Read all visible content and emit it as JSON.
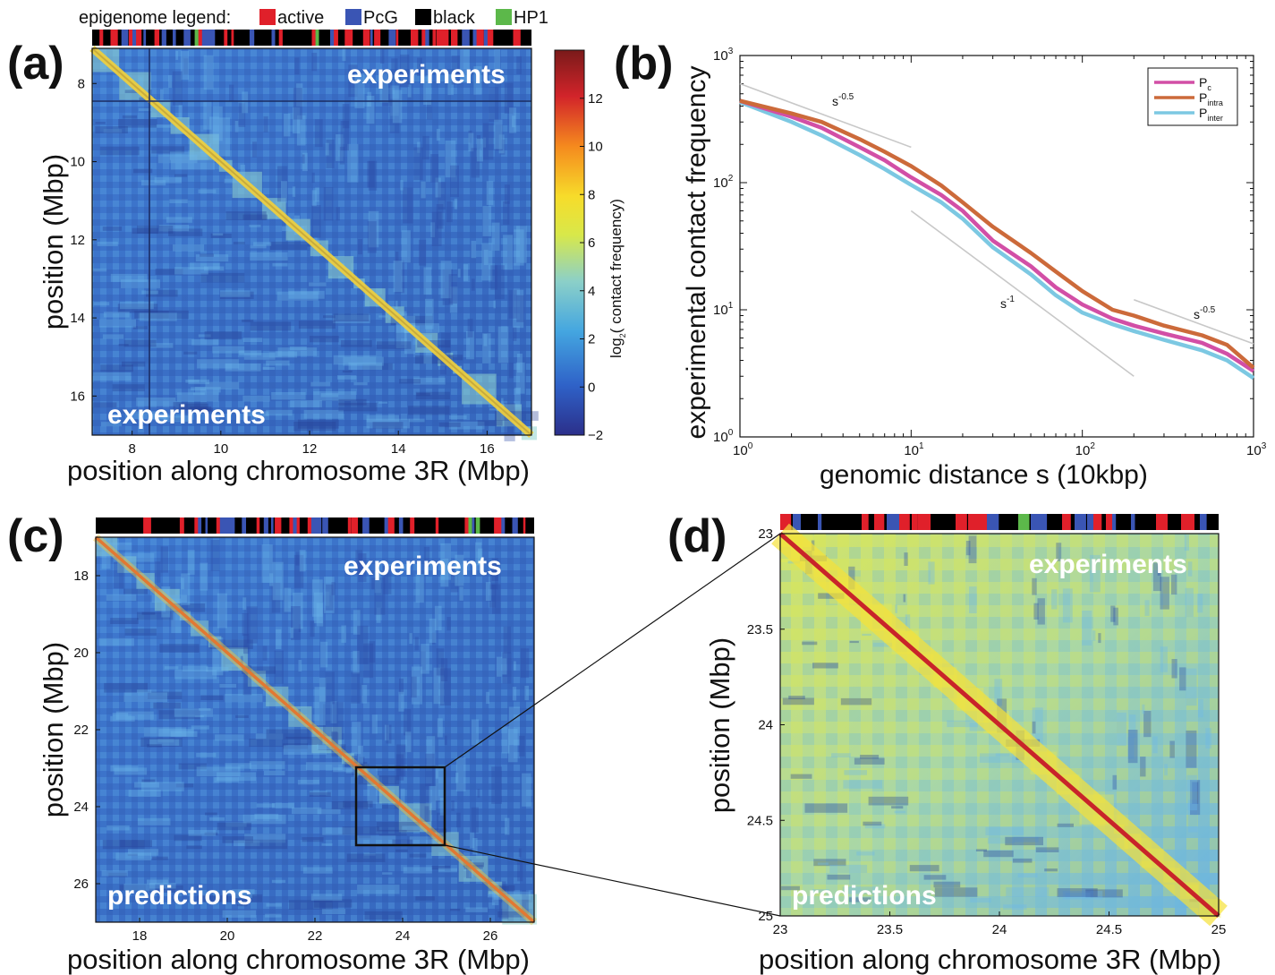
{
  "legend": {
    "title": "epigenome legend:",
    "items": [
      {
        "label": "active",
        "color": "#e0202a"
      },
      {
        "label": "PcG",
        "color": "#3a55b4"
      },
      {
        "label": "black",
        "color": "#000000"
      },
      {
        "label": "HP1",
        "color": "#5cb84a"
      }
    ]
  },
  "panels": {
    "a": {
      "label": "(a)",
      "ylabel": "position (Mbp)",
      "xlabel": "position along chromosome 3R (Mbp)",
      "upper": "experiments",
      "lower": "experiments"
    },
    "b": {
      "label": "(b)",
      "ylabel": "experimental contact frequency",
      "xlabel": "genomic distance s (10kbp)"
    },
    "c": {
      "label": "(c)",
      "ylabel": "position (Mbp)",
      "xlabel": "position along chromosome 3R (Mbp)",
      "upper": "experiments",
      "lower": "predictions"
    },
    "d": {
      "label": "(d)",
      "ylabel": "position (Mbp)",
      "xlabel": "position along chromosome 3R (Mbp)",
      "upper": "experiments",
      "lower": "predictions"
    }
  },
  "colorbar": {
    "label": "log2( contact frequency)",
    "label_main": "log",
    "label_sub": "2",
    "label_rest": "( contact frequency)",
    "ticks": [
      "12",
      "10",
      "8",
      "6",
      "4",
      "2",
      "0",
      "−2"
    ],
    "range": [
      -2,
      14
    ],
    "colors": [
      "#2b2f8a",
      "#2f62c8",
      "#44a6e0",
      "#8cd0c8",
      "#d8e84a",
      "#f7dc2a",
      "#f58a1e",
      "#d2242a",
      "#7a1a1a"
    ]
  },
  "chart_data": [
    {
      "type": "heatmap",
      "panel": "a",
      "xlabel": "position along chromosome 3R (Mbp)",
      "ylabel": "position (Mbp)",
      "xlim": [
        7.1,
        17.0
      ],
      "ylim": [
        7.1,
        17.0
      ],
      "xticks": [
        "8",
        "10",
        "12",
        "14",
        "16"
      ],
      "yticks": [
        "8",
        "10",
        "12",
        "14",
        "16"
      ],
      "annotations": [
        "experiments",
        "experiments"
      ]
    },
    {
      "type": "line",
      "panel": "b",
      "xscale": "log",
      "yscale": "log",
      "xlabel": "genomic distance s (10kbp)",
      "ylabel": "experimental contact frequency",
      "xlim": [
        1,
        1000
      ],
      "ylim": [
        1,
        1000
      ],
      "xticks": [
        "10",
        "10",
        "10",
        "10"
      ],
      "xtick_exps": [
        "0",
        "1",
        "2",
        "3"
      ],
      "yticks": [
        "10",
        "10",
        "10",
        "10"
      ],
      "ytick_exps": [
        "0",
        "1",
        "2",
        "3"
      ],
      "legend_position": "top-right",
      "series": [
        {
          "name": "P",
          "sub": "c",
          "color": "#d24fa6",
          "x": [
            1,
            2,
            3,
            5,
            7,
            10,
            15,
            20,
            30,
            50,
            70,
            100,
            150,
            200,
            300,
            500,
            700,
            1000
          ],
          "y": [
            440,
            330,
            270,
            190,
            150,
            110,
            80,
            60,
            35,
            22,
            15,
            11,
            8.5,
            7.5,
            6.5,
            5.5,
            4.5,
            3.3
          ]
        },
        {
          "name": "P",
          "sub": "intra",
          "color": "#cc6a3a",
          "x": [
            1,
            2,
            3,
            5,
            7,
            10,
            15,
            20,
            30,
            50,
            70,
            100,
            150,
            200,
            300,
            500,
            700,
            1000
          ],
          "y": [
            440,
            350,
            300,
            220,
            175,
            135,
            95,
            70,
            45,
            28,
            20,
            14,
            10,
            9,
            7.5,
            6.3,
            5.3,
            3.5
          ]
        },
        {
          "name": "P",
          "sub": "inter",
          "color": "#7cc8e2",
          "x": [
            1,
            2,
            3,
            5,
            7,
            10,
            15,
            20,
            30,
            50,
            70,
            100,
            150,
            200,
            300,
            500,
            700,
            1000
          ],
          "y": [
            430,
            300,
            235,
            165,
            128,
            96,
            70,
            52,
            31,
            19,
            13,
            9.5,
            7.7,
            6.8,
            5.8,
            4.8,
            4.0,
            2.9
          ]
        }
      ],
      "reference_lines": [
        {
          "label": "s",
          "exp": "-0.5",
          "x": [
            1,
            10
          ],
          "y": [
            600,
            190
          ]
        },
        {
          "label": "s",
          "exp": "-1",
          "x": [
            10,
            200
          ],
          "y": [
            60,
            3
          ]
        },
        {
          "label": "s",
          "exp": "-0.5",
          "x": [
            200,
            1000
          ],
          "y": [
            12,
            5.4
          ]
        }
      ]
    },
    {
      "type": "heatmap",
      "panel": "c",
      "xlabel": "position along chromosome 3R (Mbp)",
      "ylabel": "position (Mbp)",
      "xlim": [
        17.0,
        27.0
      ],
      "ylim": [
        17.0,
        27.0
      ],
      "xticks": [
        "18",
        "20",
        "22",
        "24",
        "26"
      ],
      "yticks": [
        "18",
        "20",
        "22",
        "24",
        "26"
      ],
      "zoom_box": [
        23,
        25
      ],
      "annotations": [
        "experiments",
        "predictions"
      ]
    },
    {
      "type": "heatmap",
      "panel": "d",
      "xlabel": "position along chromosome 3R (Mbp)",
      "ylabel": "position (Mbp)",
      "xlim": [
        23,
        25
      ],
      "ylim": [
        23,
        25
      ],
      "xticks": [
        "23",
        "23.5",
        "24",
        "24.5",
        "25"
      ],
      "yticks": [
        "23",
        "23.5",
        "24",
        "24.5",
        "25"
      ],
      "annotations": [
        "experiments",
        "predictions"
      ]
    }
  ]
}
